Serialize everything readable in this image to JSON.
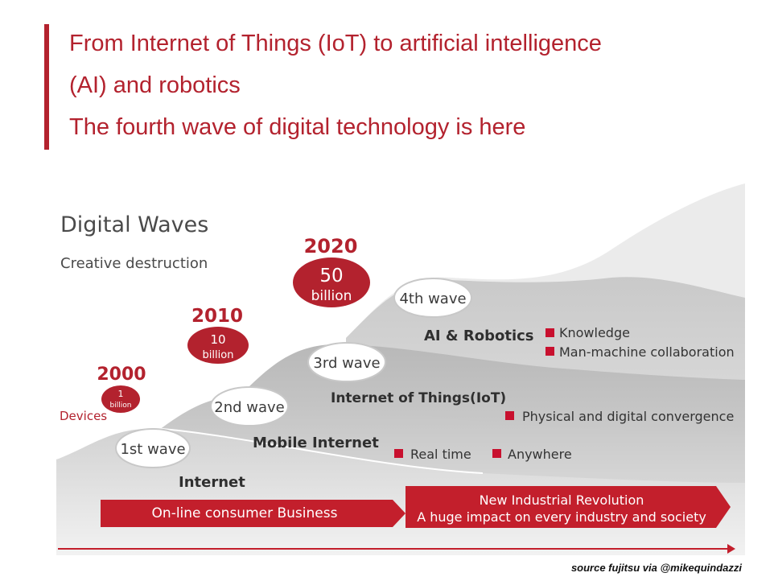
{
  "header": {
    "line1": "From Internet of Things (IoT) to artificial intelligence",
    "line2": "(AI) and robotics",
    "line3": "The fourth wave of digital technology is here"
  },
  "diagram": {
    "title": "Digital Waves",
    "subtitle": "Creative destruction",
    "devices_label": "Devices",
    "milestones": [
      {
        "year": "2000",
        "count": "1",
        "unit": "billion"
      },
      {
        "year": "2010",
        "count": "10",
        "unit": "billion"
      },
      {
        "year": "2020",
        "count": "50",
        "unit": "billion"
      }
    ],
    "waves": [
      {
        "label": "1st wave",
        "name": "Internet"
      },
      {
        "label": "2nd wave",
        "name": "Mobile Internet"
      },
      {
        "label": "3rd wave",
        "name": "Internet of Things(IoT)"
      },
      {
        "label": "4th wave",
        "name": "AI & Robotics"
      }
    ],
    "features": {
      "wave2": [
        "Real time",
        "Anywhere"
      ],
      "wave3": [
        "Physical and digital convergence"
      ],
      "wave4": [
        "Knowledge",
        "Man-machine collaboration"
      ]
    },
    "arrows": {
      "left": "On-line consumer Business",
      "right_line1": "New Industrial Revolution",
      "right_line2": "A huge impact on every industry and society"
    }
  },
  "credit": "source fujitsu via @mikequindazzi",
  "colors": {
    "brand_red": "#b3222e"
  }
}
